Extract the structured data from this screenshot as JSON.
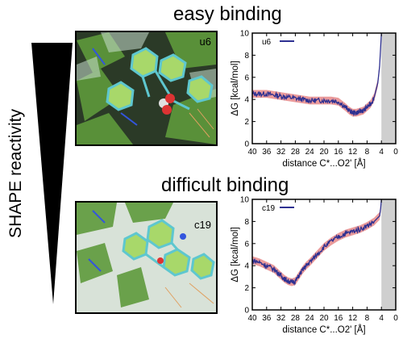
{
  "figure": {
    "left_label": "SHAPE reactivity",
    "panels": [
      {
        "heading": "easy binding",
        "image_label": "u6",
        "icons": [
          "molecular-structure-icon"
        ]
      },
      {
        "heading": "difficult binding",
        "image_label": "c19",
        "icons": [
          "molecular-structure-icon"
        ]
      }
    ]
  },
  "colors": {
    "curve": "#2e3192",
    "band": "#e8898a",
    "shade": "#cfcfcf",
    "triangle": "#000000"
  },
  "chart_data": [
    {
      "type": "line",
      "title": "",
      "xlabel": "distance  C*...O2' [Å]",
      "ylabel": "ΔG  [kcal/mol]",
      "xlim": [
        40,
        0
      ],
      "ylim": [
        0,
        10
      ],
      "x_reversed": true,
      "xticks": [
        40,
        36,
        32,
        28,
        24,
        20,
        16,
        12,
        8,
        4,
        0
      ],
      "yticks": [
        0,
        2,
        4,
        6,
        8,
        10
      ],
      "legend": "top-left",
      "shaded_region": [
        0,
        4
      ],
      "series": [
        {
          "name": "u6",
          "x": [
            40,
            38,
            36,
            34,
            32,
            30,
            28,
            26,
            24,
            22,
            20,
            18,
            16,
            14,
            13,
            12,
            11,
            10,
            9,
            8,
            7,
            6,
            5,
            4.5,
            4
          ],
          "y": [
            4.5,
            4.5,
            4.5,
            4.4,
            4.3,
            4.2,
            4.1,
            4.0,
            3.9,
            3.9,
            3.9,
            3.9,
            3.8,
            3.3,
            3.0,
            2.8,
            2.8,
            2.9,
            3.0,
            3.3,
            3.6,
            4.2,
            5.5,
            7.0,
            10
          ]
        }
      ]
    },
    {
      "type": "line",
      "title": "",
      "xlabel": "distance  C*...O2' [Å]",
      "ylabel": "ΔG  [kcal/mol]",
      "xlim": [
        40,
        0
      ],
      "ylim": [
        0,
        10
      ],
      "x_reversed": true,
      "xticks": [
        40,
        36,
        32,
        28,
        24,
        20,
        16,
        12,
        8,
        4,
        0
      ],
      "yticks": [
        0,
        2,
        4,
        6,
        8,
        10
      ],
      "legend": "top-left",
      "shaded_region": [
        0,
        4
      ],
      "series": [
        {
          "name": "c19",
          "x": [
            40,
            38,
            36,
            34,
            33,
            32,
            31,
            30,
            29,
            28,
            27,
            26,
            25,
            24,
            22,
            20,
            18,
            16,
            14,
            12,
            10,
            8,
            6,
            4.5,
            4.2,
            4
          ],
          "y": [
            4.5,
            4.3,
            4.0,
            3.7,
            3.4,
            3.1,
            2.8,
            2.6,
            2.5,
            2.6,
            3.1,
            3.6,
            4.0,
            4.3,
            5.0,
            5.7,
            6.2,
            6.6,
            6.9,
            7.1,
            7.3,
            7.6,
            8.0,
            8.5,
            9.2,
            10
          ]
        }
      ]
    }
  ]
}
